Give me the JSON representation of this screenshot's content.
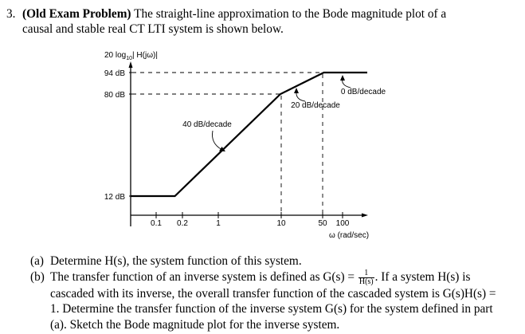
{
  "problem": {
    "number": "3.",
    "tag": "(Old Exam Problem)",
    "intro_line1": "The straight-line approximation to the Bode magnitude plot of a",
    "intro_line2": "causal and stable real CT LTI system is shown below."
  },
  "chart_data": {
    "type": "line",
    "ylabel_main": "20 log",
    "ylabel_sub": "10",
    "ylabel_tail": "| H(jω)|",
    "xlabel": "ω (rad/sec)",
    "x_tick_labels": [
      "0.1",
      "0.2",
      "1",
      "10",
      "50",
      "100"
    ],
    "y_tick_labels": [
      "94 dB",
      "80 dB",
      "12 dB"
    ],
    "x": [
      0.1,
      0.2,
      10,
      50,
      100
    ],
    "y": [
      12,
      12,
      80,
      94,
      94
    ],
    "annotations": {
      "slope1": "40 dB/decade",
      "slope2": "20 dB/decade",
      "slope3": "0 dB/decade"
    }
  },
  "parts": {
    "a_label": "(a)",
    "a_text": "Determine H(s), the system function of this system.",
    "b_label": "(b)",
    "b_t1": "The transfer function of an inverse system is defined as G(s) = ",
    "b_frac_num": "1",
    "b_frac_den": "H(s)",
    "b_t2": ". If a system H(s) is cascaded with its inverse, the overall transfer function of the cascaded system is G(s)H(s) = 1. Determine the transfer function of the inverse system G(s) for the system defined in part (a). Sketch the Bode magnitude plot for the inverse system."
  }
}
